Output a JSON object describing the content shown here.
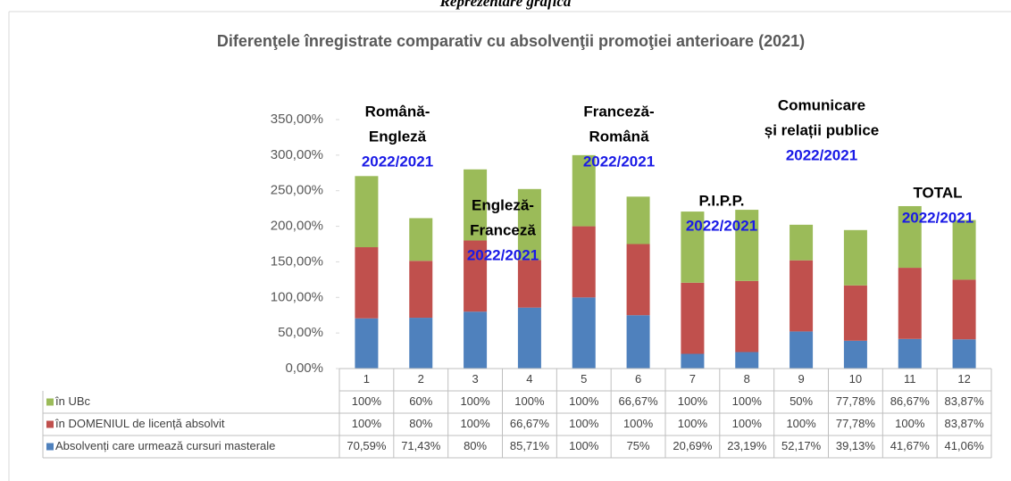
{
  "caption": "Reprezentare grafică",
  "chart_data": {
    "type": "stacked_bar",
    "title": "Diferenţele înregistrate comparativ cu absolvenţii promoţiei anterioare (2021)",
    "categories": [
      "1",
      "2",
      "3",
      "4",
      "5",
      "6",
      "7",
      "8",
      "9",
      "10",
      "11",
      "12"
    ],
    "ylim": [
      0,
      350
    ],
    "yticks": [
      {
        "value": 0,
        "label": "0,00%"
      },
      {
        "value": 50,
        "label": "50,00%"
      },
      {
        "value": 100,
        "label": "100,00%"
      },
      {
        "value": 150,
        "label": "150,00%"
      },
      {
        "value": 200,
        "label": "200,00%"
      },
      {
        "value": 250,
        "label": "250,00%"
      },
      {
        "value": 300,
        "label": "300,00%"
      },
      {
        "value": 350,
        "label": "350,00%"
      }
    ],
    "series": [
      {
        "name": "Absolvenți care urmează cursuri masterale",
        "color": "#4f81bd",
        "values": [
          70.59,
          71.43,
          80,
          85.71,
          100,
          75,
          20.69,
          23.19,
          52.17,
          39.13,
          41.67,
          41.06
        ],
        "value_labels": [
          "70,59%",
          "71,43%",
          "80%",
          "85,71%",
          "100%",
          "75%",
          "20,69%",
          "23,19%",
          "52,17%",
          "39,13%",
          "41,67%",
          "41,06%"
        ]
      },
      {
        "name": "în DOMENIUL de licență absolvit",
        "color": "#c0504d",
        "values": [
          100,
          80,
          100,
          66.67,
          100,
          100,
          100,
          100,
          100,
          77.78,
          100,
          83.87
        ],
        "value_labels": [
          "100%",
          "80%",
          "100%",
          "66,67%",
          "100%",
          "100%",
          "100%",
          "100%",
          "100%",
          "77,78%",
          "100%",
          "83,87%"
        ]
      },
      {
        "name": "în UBc",
        "color": "#9bbb59",
        "values": [
          100,
          60,
          100,
          100,
          100,
          66.67,
          100,
          100,
          50,
          77.78,
          86.67,
          83.87
        ],
        "value_labels": [
          "100%",
          "60%",
          "100%",
          "100%",
          "100%",
          "66,67%",
          "100%",
          "100%",
          "50%",
          "77,78%",
          "86,67%",
          "83,87%"
        ]
      }
    ],
    "annotations": [
      {
        "label": [
          "Română-",
          "Engleză"
        ],
        "period": "2022/2021"
      },
      {
        "label": [
          "Engleză-",
          "Franceză"
        ],
        "period": "2022/2021"
      },
      {
        "label": [
          "Franceză-",
          "Română"
        ],
        "period": "2022/2021"
      },
      {
        "label": [
          "P.I.P.P."
        ],
        "period": "2022/2021"
      },
      {
        "label": [
          "Comunicare",
          "și relații publice"
        ],
        "period": "2022/2021"
      },
      {
        "label": [
          "TOTAL"
        ],
        "period": "2022/2021"
      }
    ]
  }
}
